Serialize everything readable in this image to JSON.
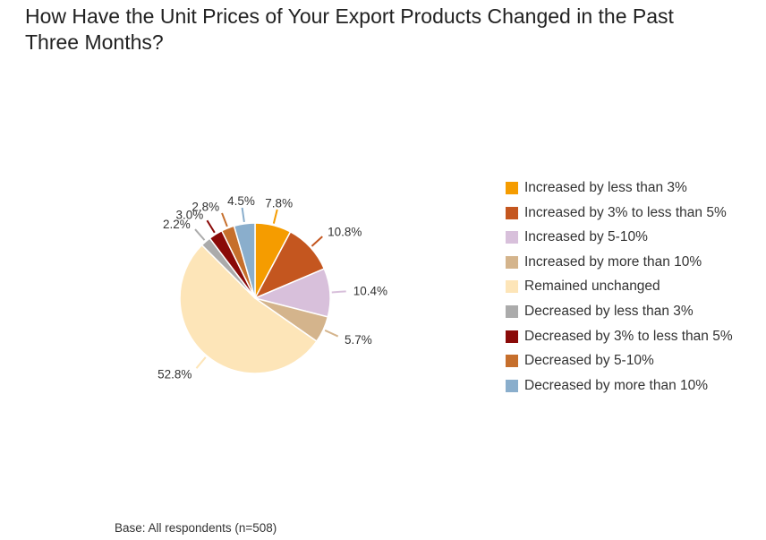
{
  "title": "How Have the Unit Prices of Your Export Products Changed in the Past Three Months?",
  "footnote": "Base: All respondents (n=508)",
  "chart_data": {
    "type": "pie",
    "title": "How Have the Unit Prices of Your Export Products Changed in the Past Three Months?",
    "legend_position": "right",
    "slices": [
      {
        "label": "Increased by less than 3%",
        "value": 7.8,
        "display": "7.8%",
        "color": "#F59C00"
      },
      {
        "label": "Increased by 3% to less than 5%",
        "value": 10.8,
        "display": "10.8%",
        "color": "#C4561F"
      },
      {
        "label": "Increased by 5-10%",
        "value": 10.4,
        "display": "10.4%",
        "color": "#D8C0DB"
      },
      {
        "label": "Increased by more than 10%",
        "value": 5.7,
        "display": "5.7%",
        "color": "#D4B48C"
      },
      {
        "label": "Remained unchanged",
        "value": 52.8,
        "display": "52.8%",
        "color": "#FDE5B8"
      },
      {
        "label": "Decreased by less than 3%",
        "value": 2.2,
        "display": "2.2%",
        "color": "#ABABAB"
      },
      {
        "label": "Decreased by 3% to less than 5%",
        "value": 3.0,
        "display": "3.0%",
        "color": "#8A0A08"
      },
      {
        "label": "Decreased by 5-10%",
        "value": 2.8,
        "display": "2.8%",
        "color": "#C66F2C"
      },
      {
        "label": "Decreased by more than 10%",
        "value": 4.5,
        "display": "4.5%",
        "color": "#8AAECC"
      }
    ]
  }
}
